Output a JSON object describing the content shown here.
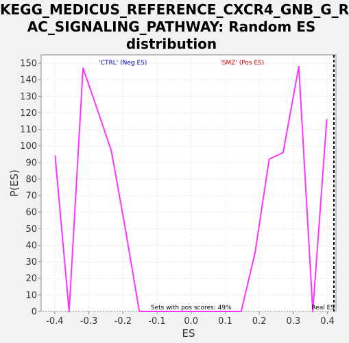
{
  "chart_data": {
    "type": "line",
    "title_lines": [
      "KEGG_MEDICUS_REFERENCE_CXCR4_GNB_G_R",
      "AC_SIGNALING_PATHWAY: Random ES",
      "distribution"
    ],
    "xlabel": "ES",
    "ylabel": "P(ES)",
    "xlim": [
      -0.44,
      0.425
    ],
    "ylim": [
      0,
      155
    ],
    "x_ticks": [
      -0.4,
      -0.3,
      -0.2,
      -0.1,
      0.0,
      0.1,
      0.2,
      0.3,
      0.4
    ],
    "x_tick_labels": [
      "-0.4",
      "-0.3",
      "-0.2",
      "-0.1",
      "0.0",
      "0.1",
      "0.2",
      "0.3",
      "0.4"
    ],
    "y_ticks": [
      0,
      10,
      20,
      30,
      40,
      50,
      60,
      70,
      80,
      90,
      100,
      110,
      120,
      130,
      140,
      150
    ],
    "grid": true,
    "series": [
      {
        "color": "#ff33ff",
        "x": [
          -0.399,
          -0.358,
          -0.317,
          -0.275,
          -0.234,
          -0.193,
          -0.152,
          -0.11,
          -0.069,
          -0.028,
          0.014,
          0.055,
          0.096,
          0.147,
          0.188,
          0.229,
          0.27,
          0.316,
          0.357,
          0.398
        ],
        "y": [
          94,
          0,
          147,
          122,
          97,
          50,
          0,
          0,
          0,
          0,
          0,
          0,
          0,
          0,
          36,
          92,
          96,
          148,
          0,
          116
        ]
      }
    ],
    "real_es": 0.419,
    "real_es_label": "Real ES",
    "legend_neg": "'CTRL' (Neg ES)",
    "legend_pos": "'SMZ' (Pos ES)",
    "legend_neg_color": "#0000cc",
    "legend_pos_color": "#cc0000",
    "annotation": "Sets with pos scores: 49%"
  }
}
